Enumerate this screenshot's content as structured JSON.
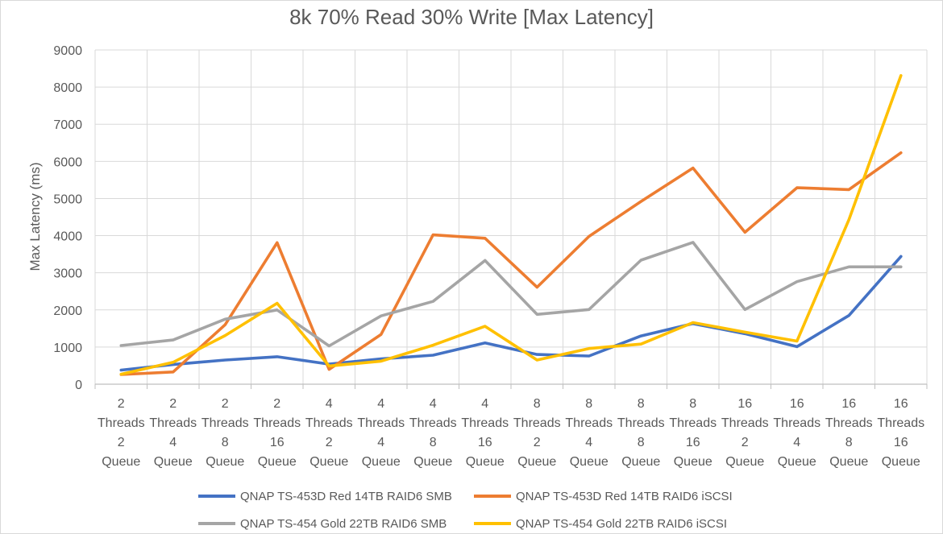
{
  "chart_data": {
    "type": "line",
    "title": "8k 70% Read 30% Write [Max Latency]",
    "xlabel": "",
    "ylabel": "Max Latency (ms)",
    "ylim": [
      0,
      9000
    ],
    "yticks": [
      0,
      1000,
      2000,
      3000,
      4000,
      5000,
      6000,
      7000,
      8000,
      9000
    ],
    "grid": true,
    "legend_position": "bottom",
    "categories": [
      [
        "2",
        "Threads",
        "2",
        "Queue"
      ],
      [
        "2",
        "Threads",
        "4",
        "Queue"
      ],
      [
        "2",
        "Threads",
        "8",
        "Queue"
      ],
      [
        "2",
        "Threads",
        "16",
        "Queue"
      ],
      [
        "4",
        "Threads",
        "2",
        "Queue"
      ],
      [
        "4",
        "Threads",
        "4",
        "Queue"
      ],
      [
        "4",
        "Threads",
        "8",
        "Queue"
      ],
      [
        "4",
        "Threads",
        "16",
        "Queue"
      ],
      [
        "8",
        "Threads",
        "2",
        "Queue"
      ],
      [
        "8",
        "Threads",
        "4",
        "Queue"
      ],
      [
        "8",
        "Threads",
        "8",
        "Queue"
      ],
      [
        "8",
        "Threads",
        "16",
        "Queue"
      ],
      [
        "16",
        "Threads",
        "2",
        "Queue"
      ],
      [
        "16",
        "Threads",
        "4",
        "Queue"
      ],
      [
        "16",
        "Threads",
        "8",
        "Queue"
      ],
      [
        "16",
        "Threads",
        "16",
        "Queue"
      ]
    ],
    "series": [
      {
        "name": "QNAP TS-453D Red 14TB RAID6 SMB",
        "color": "#4472c4",
        "values": [
          380,
          530,
          650,
          740,
          540,
          680,
          780,
          1110,
          800,
          760,
          1300,
          1630,
          1360,
          1010,
          1850,
          3440
        ]
      },
      {
        "name": "QNAP TS-453D Red 14TB RAID6 iSCSI",
        "color": "#ed7d31",
        "values": [
          260,
          330,
          1600,
          3810,
          400,
          1340,
          4020,
          3930,
          2610,
          3980,
          4920,
          5820,
          4090,
          5290,
          5240,
          6230
        ]
      },
      {
        "name": "QNAP TS-454 Gold 22TB RAID6 SMB",
        "color": "#a5a5a5",
        "values": [
          1040,
          1190,
          1750,
          2000,
          1030,
          1840,
          2230,
          3330,
          1880,
          2010,
          3340,
          3820,
          2010,
          2760,
          3160,
          3160
        ]
      },
      {
        "name": "QNAP TS-454 Gold 22TB RAID6 iSCSI",
        "color": "#ffc000",
        "values": [
          270,
          590,
          1310,
          2180,
          490,
          620,
          1050,
          1560,
          650,
          960,
          1080,
          1660,
          1400,
          1160,
          4430,
          8310
        ]
      }
    ]
  }
}
